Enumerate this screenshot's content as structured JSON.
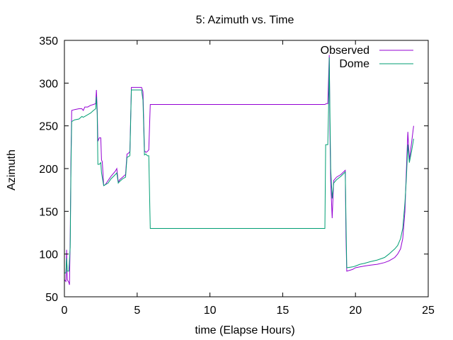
{
  "chart_data": {
    "type": "line",
    "title": "5: Azimuth vs. Time",
    "xlabel": "time (Elapse Hours)",
    "ylabel": "Azimuth",
    "xlim": [
      0,
      25
    ],
    "ylim": [
      50,
      350
    ],
    "xticks": [
      0,
      5,
      10,
      15,
      20,
      25
    ],
    "yticks": [
      50,
      100,
      150,
      200,
      250,
      300,
      350
    ],
    "grid": false,
    "legend_position": "top-right",
    "series": [
      {
        "name": "Observed",
        "color": "#9400d3",
        "points": [
          [
            0.0,
            70
          ],
          [
            0.1,
            68
          ],
          [
            0.15,
            105
          ],
          [
            0.2,
            70
          ],
          [
            0.3,
            67
          ],
          [
            0.35,
            64
          ],
          [
            0.4,
            120
          ],
          [
            0.45,
            215
          ],
          [
            0.5,
            268
          ],
          [
            0.7,
            269
          ],
          [
            1.0,
            270
          ],
          [
            1.2,
            270
          ],
          [
            1.3,
            268
          ],
          [
            1.4,
            272
          ],
          [
            1.6,
            272
          ],
          [
            1.8,
            274
          ],
          [
            2.0,
            275
          ],
          [
            2.15,
            276
          ],
          [
            2.2,
            292
          ],
          [
            2.25,
            270
          ],
          [
            2.3,
            232
          ],
          [
            2.4,
            236
          ],
          [
            2.5,
            236
          ],
          [
            2.55,
            210
          ],
          [
            2.6,
            208
          ],
          [
            2.7,
            180
          ],
          [
            2.8,
            181
          ],
          [
            3.0,
            186
          ],
          [
            3.2,
            191
          ],
          [
            3.5,
            197
          ],
          [
            3.6,
            200
          ],
          [
            3.7,
            184
          ],
          [
            3.8,
            187
          ],
          [
            4.0,
            190
          ],
          [
            4.2,
            193
          ],
          [
            4.3,
            217
          ],
          [
            4.4,
            218
          ],
          [
            4.5,
            220
          ],
          [
            4.6,
            295
          ],
          [
            5.0,
            295
          ],
          [
            5.3,
            295
          ],
          [
            5.4,
            290
          ],
          [
            5.5,
            221
          ],
          [
            5.6,
            219
          ],
          [
            5.7,
            220
          ],
          [
            5.8,
            222
          ],
          [
            5.9,
            275
          ],
          [
            10,
            275
          ],
          [
            15,
            275
          ],
          [
            17.9,
            275
          ],
          [
            18.0,
            276
          ],
          [
            18.1,
            276
          ],
          [
            18.15,
            305
          ],
          [
            18.2,
            333
          ],
          [
            18.25,
            240
          ],
          [
            18.3,
            185
          ],
          [
            18.4,
            142
          ],
          [
            18.5,
            186
          ],
          [
            18.7,
            190
          ],
          [
            19.0,
            193
          ],
          [
            19.3,
            198
          ],
          [
            19.35,
            120
          ],
          [
            19.4,
            80
          ],
          [
            19.8,
            82
          ],
          [
            20.0,
            84
          ],
          [
            20.3,
            85
          ],
          [
            20.6,
            86
          ],
          [
            21.0,
            87
          ],
          [
            21.5,
            88
          ],
          [
            22.0,
            90
          ],
          [
            22.3,
            92
          ],
          [
            22.5,
            94
          ],
          [
            22.7,
            96
          ],
          [
            22.9,
            100
          ],
          [
            23.1,
            106
          ],
          [
            23.25,
            118
          ],
          [
            23.4,
            150
          ],
          [
            23.5,
            200
          ],
          [
            23.6,
            243
          ],
          [
            23.7,
            210
          ],
          [
            23.85,
            230
          ],
          [
            24.0,
            250
          ]
        ]
      },
      {
        "name": "Dome",
        "color": "#009e73",
        "points": [
          [
            0.0,
            78
          ],
          [
            0.1,
            78
          ],
          [
            0.15,
            95
          ],
          [
            0.2,
            80
          ],
          [
            0.3,
            80
          ],
          [
            0.4,
            108
          ],
          [
            0.45,
            205
          ],
          [
            0.5,
            255
          ],
          [
            0.7,
            257
          ],
          [
            1.0,
            258
          ],
          [
            1.2,
            261
          ],
          [
            1.3,
            260
          ],
          [
            1.5,
            262
          ],
          [
            1.8,
            265
          ],
          [
            2.0,
            268
          ],
          [
            2.15,
            270
          ],
          [
            2.2,
            284
          ],
          [
            2.25,
            265
          ],
          [
            2.3,
            205
          ],
          [
            2.4,
            205
          ],
          [
            2.5,
            207
          ],
          [
            2.55,
            195
          ],
          [
            2.7,
            180
          ],
          [
            3.0,
            183
          ],
          [
            3.2,
            188
          ],
          [
            3.5,
            193
          ],
          [
            3.6,
            195
          ],
          [
            3.7,
            183
          ],
          [
            3.8,
            185
          ],
          [
            4.0,
            188
          ],
          [
            4.2,
            190
          ],
          [
            4.3,
            213
          ],
          [
            4.4,
            214
          ],
          [
            4.5,
            215
          ],
          [
            4.6,
            292
          ],
          [
            5.0,
            292
          ],
          [
            5.3,
            292
          ],
          [
            5.4,
            280
          ],
          [
            5.5,
            216
          ],
          [
            5.6,
            217
          ],
          [
            5.7,
            215
          ],
          [
            5.8,
            215
          ],
          [
            5.9,
            130
          ],
          [
            10,
            130
          ],
          [
            15,
            130
          ],
          [
            17.9,
            130
          ],
          [
            17.95,
            228
          ],
          [
            18.1,
            228
          ],
          [
            18.15,
            270
          ],
          [
            18.2,
            330
          ],
          [
            18.25,
            260
          ],
          [
            18.3,
            200
          ],
          [
            18.4,
            165
          ],
          [
            18.5,
            183
          ],
          [
            18.7,
            187
          ],
          [
            19.0,
            191
          ],
          [
            19.3,
            196
          ],
          [
            19.35,
            140
          ],
          [
            19.4,
            84
          ],
          [
            19.8,
            85
          ],
          [
            20.0,
            86
          ],
          [
            20.3,
            88
          ],
          [
            20.6,
            89
          ],
          [
            21.0,
            91
          ],
          [
            21.5,
            93
          ],
          [
            22.0,
            96
          ],
          [
            22.3,
            100
          ],
          [
            22.5,
            103
          ],
          [
            22.7,
            106
          ],
          [
            22.9,
            110
          ],
          [
            23.1,
            118
          ],
          [
            23.25,
            130
          ],
          [
            23.4,
            160
          ],
          [
            23.5,
            190
          ],
          [
            23.6,
            228
          ],
          [
            23.7,
            207
          ],
          [
            23.85,
            220
          ],
          [
            24.0,
            235
          ]
        ]
      }
    ]
  }
}
